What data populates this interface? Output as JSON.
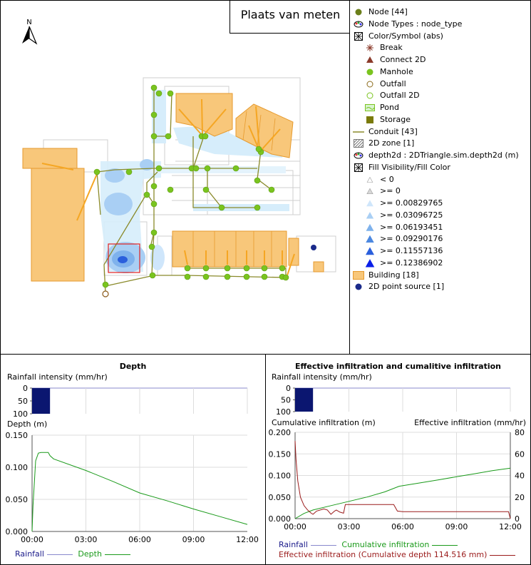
{
  "map": {
    "title": "Plaats van meten",
    "north_label": "N"
  },
  "legend": {
    "items": [
      {
        "label": "Node [44]",
        "icon": "node-icon"
      },
      {
        "label": "Node Types : node_type",
        "icon": "theme-icon"
      },
      {
        "label": "Color/Symbol (abs)",
        "icon": "grid-icon"
      },
      {
        "label": "Break",
        "icon": "break-icon"
      },
      {
        "label": "Connect 2D",
        "icon": "triangle-icon"
      },
      {
        "label": "Manhole",
        "icon": "manhole-icon"
      },
      {
        "label": "Outfall",
        "icon": "outfall-icon"
      },
      {
        "label": "Outfall 2D",
        "icon": "outfall2d-icon"
      },
      {
        "label": "Pond",
        "icon": "pond-icon"
      },
      {
        "label": "Storage",
        "icon": "storage-icon"
      },
      {
        "label": "Conduit [43]",
        "icon": "conduit-icon"
      },
      {
        "label": "2D zone [1]",
        "icon": "zone-icon"
      },
      {
        "label": "depth2d : 2DTriangle.sim.depth2d (m)",
        "icon": "theme-icon"
      },
      {
        "label": "Fill Visibility/Fill Color",
        "icon": "grid-icon"
      },
      {
        "label": "< 0",
        "icon": "depth-icon"
      },
      {
        "label": ">= 0",
        "icon": "depth-icon"
      },
      {
        "label": ">= 0.00829765",
        "icon": "depth-icon"
      },
      {
        "label": ">= 0.03096725",
        "icon": "depth-icon"
      },
      {
        "label": ">= 0.06193451",
        "icon": "depth-icon"
      },
      {
        "label": ">= 0.09290176",
        "icon": "depth-icon"
      },
      {
        "label": ">= 0.11557136",
        "icon": "depth-icon"
      },
      {
        "label": ">= 0.12386902",
        "icon": "depth-icon"
      },
      {
        "label": "Building [18]",
        "icon": "building-icon"
      },
      {
        "label": "2D point source [1]",
        "icon": "point-source-icon"
      }
    ],
    "colors": {
      "node": "#6b7f1a",
      "manhole": "#7ac41f",
      "connect": "#8b3a2a",
      "storage": "#7a7a0a",
      "conduit": "#8a8a2a",
      "building": "#f8c77a",
      "point_source": "#1a2a8a",
      "depth_ramp": [
        "#ffffff",
        "#d8d8d8",
        "#cfe6fb",
        "#a9cff4",
        "#7fb2ec",
        "#4c88e0",
        "#2a5fdc",
        "#0a1fe8"
      ]
    }
  },
  "chart_data": [
    {
      "type": "line",
      "title": "Depth",
      "rain_axis_label": "Rainfall intensity (mm/hr)",
      "rain_ticks": [
        "0",
        "50",
        "100"
      ],
      "rain_ylim": [
        0,
        100
      ],
      "rainfall": {
        "start": "00:00",
        "end": "01:00",
        "intensity": 100
      },
      "ylabel": "Depth (m)",
      "ylim": [
        0,
        0.15
      ],
      "yticks": [
        "0.150",
        "0.100",
        "0.050",
        "0.000"
      ],
      "xticks": [
        "00:00",
        "03:00",
        "06:00",
        "09:00",
        "12:00"
      ],
      "xlim": [
        0,
        12
      ],
      "series": [
        {
          "name": "Depth",
          "color": "#1a9a1a",
          "x": [
            0,
            0.05,
            0.2,
            0.35,
            0.5,
            0.9,
            1.0,
            1.2,
            3.0,
            4.5,
            6.0,
            7.5,
            9.0,
            10.5,
            12.0
          ],
          "y": [
            0,
            0.04,
            0.11,
            0.122,
            0.123,
            0.123,
            0.118,
            0.113,
            0.095,
            0.078,
            0.06,
            0.048,
            0.035,
            0.023,
            0.011
          ]
        }
      ],
      "legend": [
        {
          "label": "Rainfall",
          "color": "#1a1a8a"
        },
        {
          "label": "Depth",
          "color": "#1a9a1a"
        }
      ]
    },
    {
      "type": "line",
      "title": "Effective infiltration and cumalitive infiltration",
      "rain_axis_label": "Rainfall intensity (mm/hr)",
      "rain_ticks": [
        "0",
        "50",
        "100"
      ],
      "rain_ylim": [
        0,
        100
      ],
      "rainfall": {
        "start": "00:00",
        "end": "01:00",
        "intensity": 100
      },
      "ylabel": "Cumulative infiltration (m)",
      "ylabel_right": "Effective infiltration (mm/hr)",
      "ylim": [
        0,
        0.2
      ],
      "ylim_right": [
        0,
        80
      ],
      "yticks": [
        "0.200",
        "0.150",
        "0.100",
        "0.050",
        "0.000"
      ],
      "yticks_right": [
        "80",
        "60",
        "40",
        "20",
        "0"
      ],
      "xticks": [
        "00:00",
        "03:00",
        "06:00",
        "09:00",
        "12:00"
      ],
      "xlim": [
        0,
        12
      ],
      "series": [
        {
          "name": "Cumulative infiltration",
          "color": "#1a9a1a",
          "axis": "left",
          "x": [
            0,
            0.5,
            1.0,
            2.0,
            3.0,
            4.0,
            5.0,
            5.8,
            7.0,
            8.0,
            9.0,
            10.0,
            11.0,
            12.0
          ],
          "y": [
            0,
            0.012,
            0.02,
            0.03,
            0.04,
            0.05,
            0.062,
            0.075,
            0.083,
            0.09,
            0.097,
            0.104,
            0.111,
            0.117
          ]
        },
        {
          "name": "Effective infiltration (Cumulative depth 114.516 mm)",
          "color": "#9a1a1a",
          "axis": "right",
          "x": [
            0,
            0.05,
            0.15,
            0.3,
            0.5,
            0.7,
            0.9,
            1.0,
            1.2,
            1.6,
            1.8,
            2.0,
            2.2,
            2.3,
            2.5,
            2.7,
            2.8,
            3.0,
            4.5,
            5.5,
            5.7,
            6.0,
            9.0,
            11.9,
            12.0
          ],
          "y": [
            72,
            55,
            35,
            20,
            12,
            8,
            5,
            4,
            7,
            9,
            8,
            4,
            7,
            8,
            6,
            5,
            13,
            13,
            13,
            13,
            7,
            6.5,
            6.5,
            6.5,
            0
          ]
        }
      ],
      "legend": [
        {
          "label": "Rainfall",
          "color": "#1a1a8a"
        },
        {
          "label": "Cumulative infiltration",
          "color": "#1a9a1a"
        },
        {
          "label": "Effective infiltration (Cumulative depth 114.516 mm)",
          "color": "#9a1a1a"
        }
      ]
    }
  ]
}
